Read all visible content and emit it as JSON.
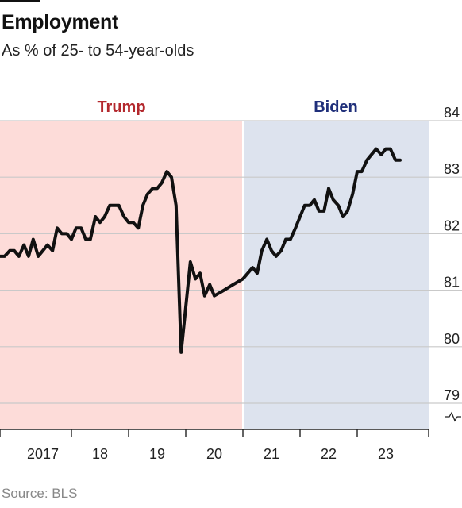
{
  "chart_data": {
    "type": "line",
    "title": "Employment",
    "subtitle": "As % of 25- to 54-year-olds",
    "source": "Source: BLS",
    "ylim": [
      79,
      84
    ],
    "yticks": [
      79,
      80,
      81,
      82,
      83,
      84
    ],
    "xlim": [
      2016.25,
      2023.75
    ],
    "x_ticks": [
      {
        "label": "2017",
        "value": 2017.0
      },
      {
        "label": "18",
        "value": 2018.0
      },
      {
        "label": "19",
        "value": 2019.0
      },
      {
        "label": "20",
        "value": 2020.0
      },
      {
        "label": "21",
        "value": 2021.0
      },
      {
        "label": "22",
        "value": 2022.0
      },
      {
        "label": "23",
        "value": 2023.0
      }
    ],
    "periods": [
      {
        "label": "Trump",
        "start": 2016.25,
        "end": 2020.5,
        "color": "#fddcd9",
        "label_color": "#b3282d"
      },
      {
        "label": "Biden",
        "start": 2020.5,
        "end": 2023.75,
        "color": "#dde3ee",
        "label_color": "#1f2f7a"
      }
    ],
    "grid": true,
    "axis_break": true,
    "series": [
      {
        "values": [
          {
            "x": 2016.25,
            "y": 81.6
          },
          {
            "x": 2016.33,
            "y": 81.6
          },
          {
            "x": 2016.42,
            "y": 81.7
          },
          {
            "x": 2016.5,
            "y": 81.7
          },
          {
            "x": 2016.58,
            "y": 81.6
          },
          {
            "x": 2016.67,
            "y": 81.8
          },
          {
            "x": 2016.75,
            "y": 81.6
          },
          {
            "x": 2016.83,
            "y": 81.9
          },
          {
            "x": 2016.92,
            "y": 81.6
          },
          {
            "x": 2017.0,
            "y": 81.7
          },
          {
            "x": 2017.08,
            "y": 81.8
          },
          {
            "x": 2017.17,
            "y": 81.7
          },
          {
            "x": 2017.25,
            "y": 82.1
          },
          {
            "x": 2017.33,
            "y": 82.0
          },
          {
            "x": 2017.42,
            "y": 82.0
          },
          {
            "x": 2017.5,
            "y": 81.9
          },
          {
            "x": 2017.58,
            "y": 82.1
          },
          {
            "x": 2017.67,
            "y": 82.1
          },
          {
            "x": 2017.75,
            "y": 81.9
          },
          {
            "x": 2017.83,
            "y": 81.9
          },
          {
            "x": 2017.92,
            "y": 82.3
          },
          {
            "x": 2018.0,
            "y": 82.2
          },
          {
            "x": 2018.08,
            "y": 82.3
          },
          {
            "x": 2018.17,
            "y": 82.5
          },
          {
            "x": 2018.25,
            "y": 82.5
          },
          {
            "x": 2018.33,
            "y": 82.5
          },
          {
            "x": 2018.42,
            "y": 82.3
          },
          {
            "x": 2018.5,
            "y": 82.2
          },
          {
            "x": 2018.58,
            "y": 82.2
          },
          {
            "x": 2018.67,
            "y": 82.1
          },
          {
            "x": 2018.75,
            "y": 82.5
          },
          {
            "x": 2018.83,
            "y": 82.7
          },
          {
            "x": 2018.92,
            "y": 82.8
          },
          {
            "x": 2019.0,
            "y": 82.8
          },
          {
            "x": 2019.08,
            "y": 82.9
          },
          {
            "x": 2019.17,
            "y": 83.1
          },
          {
            "x": 2019.25,
            "y": 83.0
          },
          {
            "x": 2019.33,
            "y": 82.5
          },
          {
            "x": 2019.42,
            "y": 79.9
          },
          {
            "x": 2019.5,
            "y": 80.7
          },
          {
            "x": 2019.58,
            "y": 81.5
          },
          {
            "x": 2019.67,
            "y": 81.2
          },
          {
            "x": 2019.75,
            "y": 81.3
          },
          {
            "x": 2019.83,
            "y": 80.9
          },
          {
            "x": 2019.92,
            "y": 81.1
          },
          {
            "x": 2020.0,
            "y": 80.9
          },
          {
            "x": 2020.17,
            "y": 81.0
          },
          {
            "x": 2020.33,
            "y": 81.1
          },
          {
            "x": 2020.5,
            "y": 81.2
          },
          {
            "x": 2020.67,
            "y": 81.4
          },
          {
            "x": 2020.75,
            "y": 81.3
          },
          {
            "x": 2020.83,
            "y": 81.7
          },
          {
            "x": 2020.92,
            "y": 81.9
          },
          {
            "x": 2021.0,
            "y": 81.7
          },
          {
            "x": 2021.08,
            "y": 81.6
          },
          {
            "x": 2021.17,
            "y": 81.7
          },
          {
            "x": 2021.25,
            "y": 81.9
          },
          {
            "x": 2021.33,
            "y": 81.9
          },
          {
            "x": 2021.42,
            "y": 82.1
          },
          {
            "x": 2021.5,
            "y": 82.3
          },
          {
            "x": 2021.58,
            "y": 82.5
          },
          {
            "x": 2021.67,
            "y": 82.5
          },
          {
            "x": 2021.75,
            "y": 82.6
          },
          {
            "x": 2021.83,
            "y": 82.4
          },
          {
            "x": 2021.92,
            "y": 82.4
          },
          {
            "x": 2022.0,
            "y": 82.8
          },
          {
            "x": 2022.08,
            "y": 82.6
          },
          {
            "x": 2022.17,
            "y": 82.5
          },
          {
            "x": 2022.25,
            "y": 82.3
          },
          {
            "x": 2022.33,
            "y": 82.4
          },
          {
            "x": 2022.42,
            "y": 82.7
          },
          {
            "x": 2022.5,
            "y": 83.1
          },
          {
            "x": 2022.58,
            "y": 83.1
          },
          {
            "x": 2022.67,
            "y": 83.3
          },
          {
            "x": 2022.75,
            "y": 83.4
          },
          {
            "x": 2022.83,
            "y": 83.5
          },
          {
            "x": 2022.92,
            "y": 83.4
          },
          {
            "x": 2023.0,
            "y": 83.5
          },
          {
            "x": 2023.08,
            "y": 83.5
          },
          {
            "x": 2023.17,
            "y": 83.3
          },
          {
            "x": 2023.25,
            "y": 83.3
          }
        ]
      }
    ]
  }
}
